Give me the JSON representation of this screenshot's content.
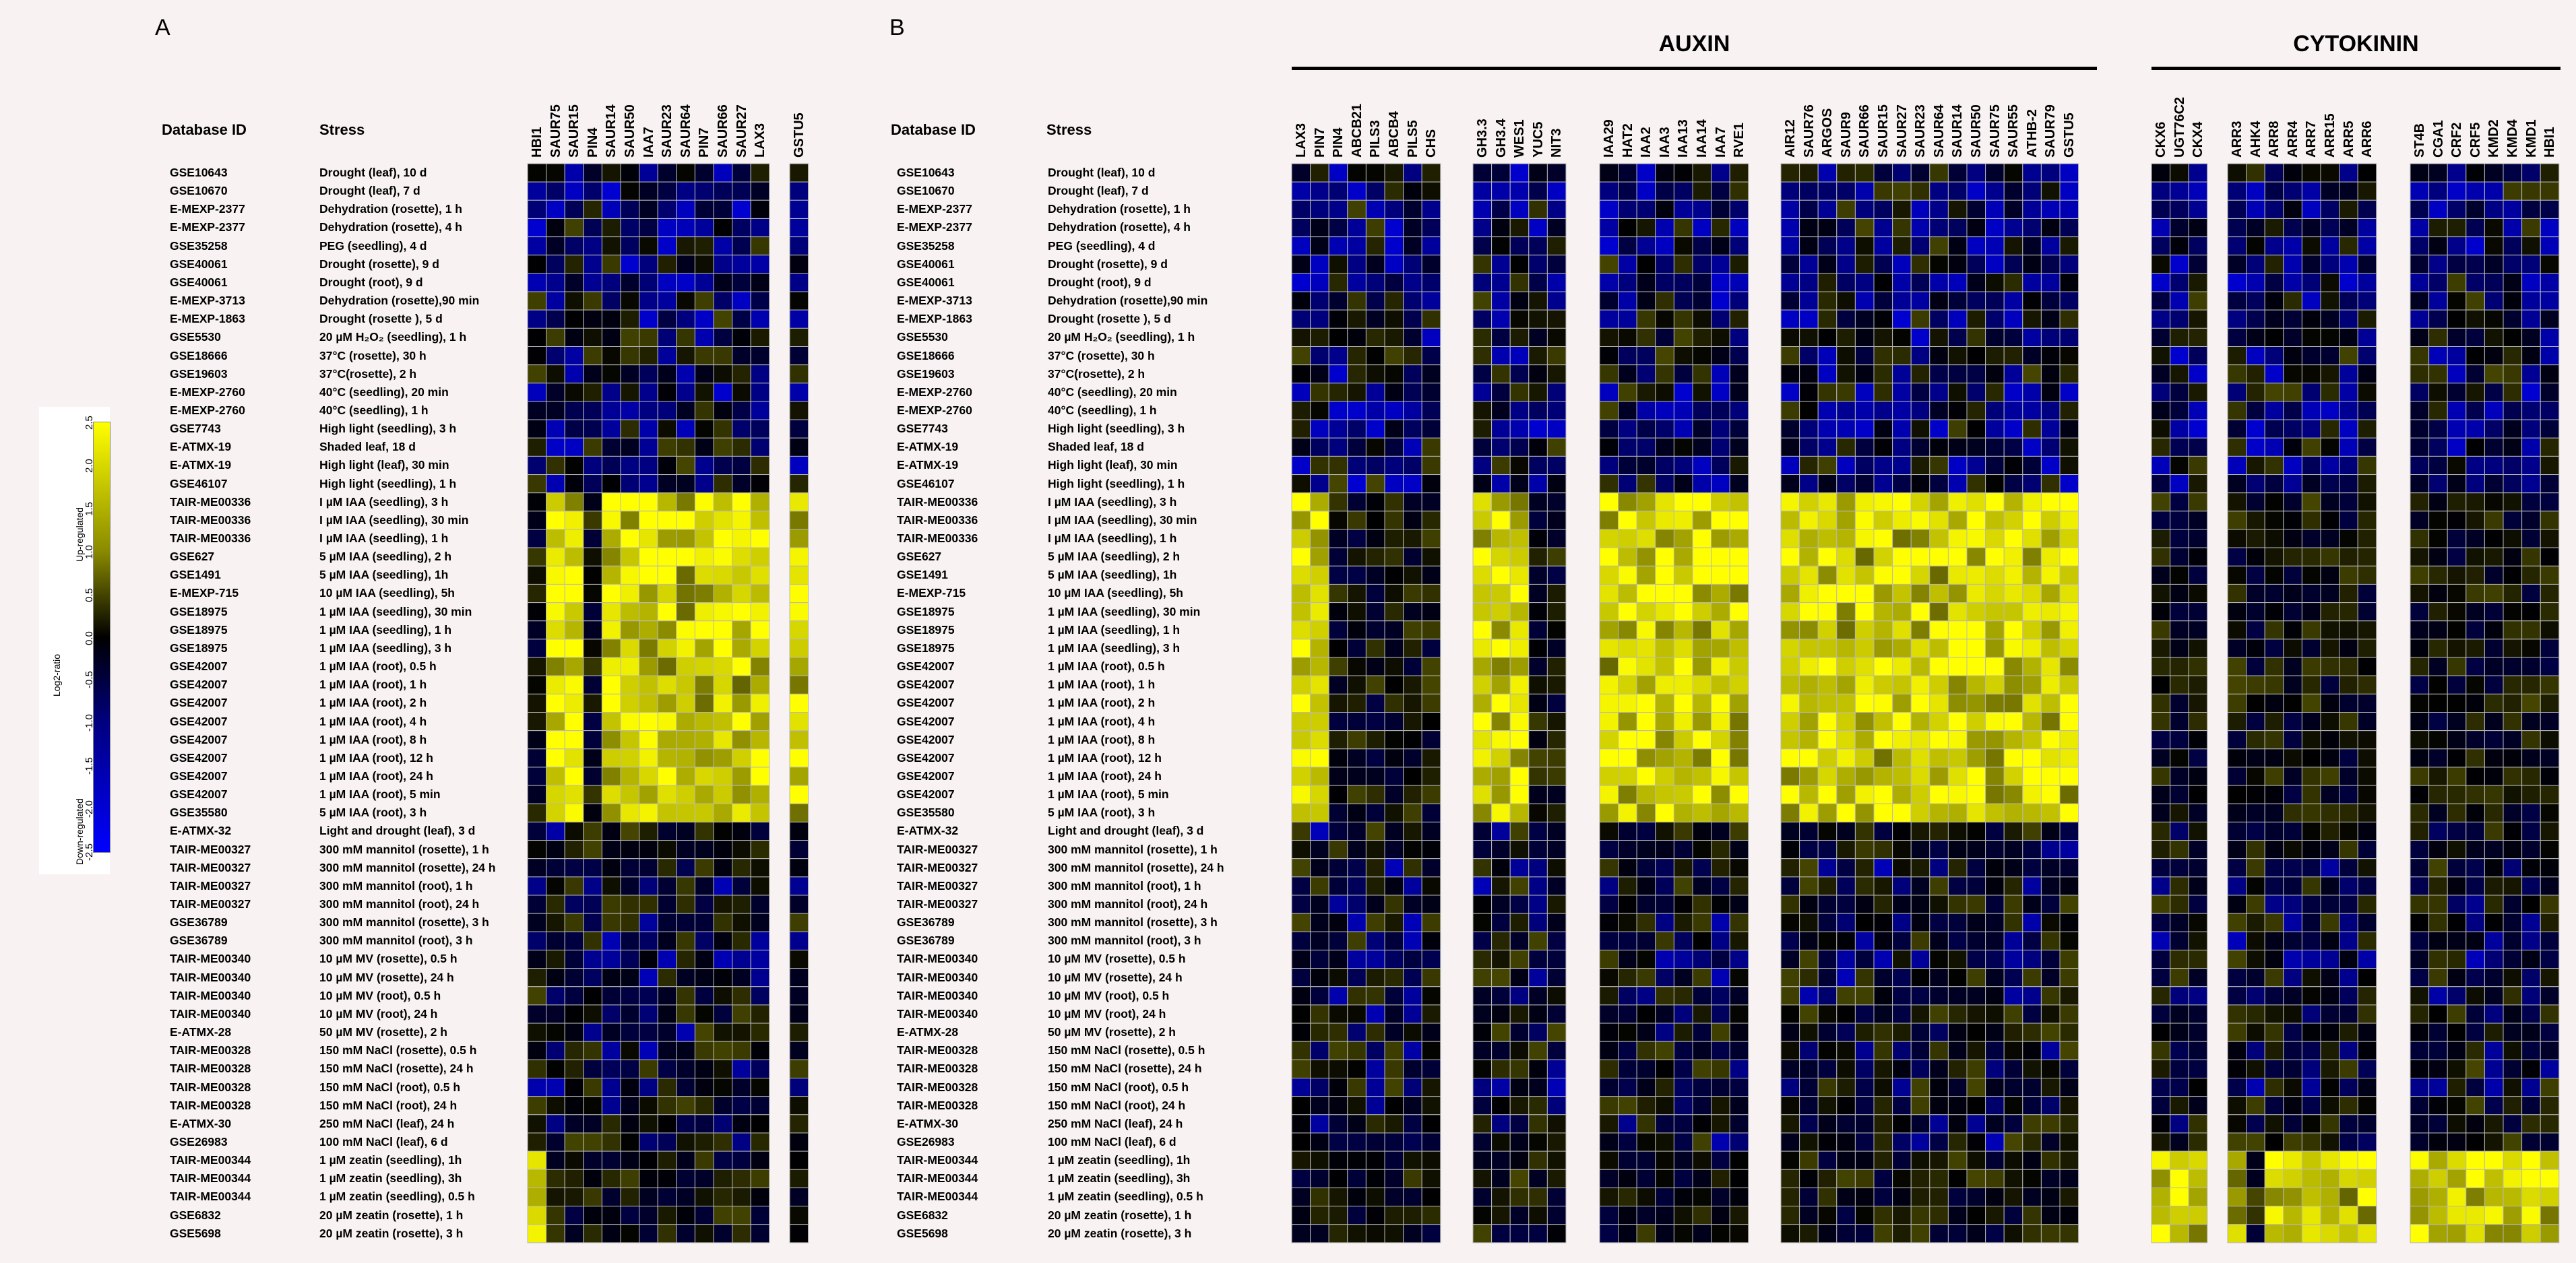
{
  "panels": {
    "a": "A",
    "b": "B"
  },
  "headers": {
    "database_id": "Database ID",
    "stress": "Stress"
  },
  "groups": {
    "auxin": "AUXIN",
    "cytokinin": "CYTOKININ"
  },
  "legend": {
    "up": "Up-regulated",
    "down": "Down-regulated",
    "axis": "Log2-ratio",
    "ticks": [
      "2.5",
      "2.0",
      "1.5",
      "1.0",
      "0.5",
      "0.0",
      "-0.5",
      "-1.0",
      "-1.5",
      "-2.0",
      "-2.5"
    ],
    "colors": {
      "high": "#ffff00",
      "mid": "#000000",
      "low": "#0000ff"
    }
  },
  "rows": [
    {
      "id": "GSE10643",
      "stress": "Drought (leaf), 10 d"
    },
    {
      "id": "GSE10670",
      "stress": "Drought (leaf), 7 d"
    },
    {
      "id": "E-MEXP-2377",
      "stress": "Dehydration (rosette), 1 h"
    },
    {
      "id": "E-MEXP-2377",
      "stress": "Dehydration (rosette), 4 h"
    },
    {
      "id": "GSE35258",
      "stress": "PEG (seedling), 4 d"
    },
    {
      "id": "GSE40061",
      "stress": "Drought (rosette), 9 d"
    },
    {
      "id": "GSE40061",
      "stress": "Drought (root), 9 d"
    },
    {
      "id": "E-MEXP-3713",
      "stress": "Dehydration (rosette),90 min"
    },
    {
      "id": "E-MEXP-1863",
      "stress": "Drought (rosette ), 5 d"
    },
    {
      "id": "GSE5530",
      "stress": "20 µM H₂O₂ (seedling), 1 h"
    },
    {
      "id": "GSE18666",
      "stress": "37°C (rosette), 30 h"
    },
    {
      "id": "GSE19603",
      "stress": "37°C(rosette), 2 h"
    },
    {
      "id": "E-MEXP-2760",
      "stress": "40°C (seedling),  20 min"
    },
    {
      "id": "E-MEXP-2760",
      "stress": "40°C (seedling), 1 h"
    },
    {
      "id": "GSE7743",
      "stress": "High light (seedling), 3 h"
    },
    {
      "id": "E-ATMX-19",
      "stress": "Shaded leaf, 18 d"
    },
    {
      "id": "E-ATMX-19",
      "stress": "High light (leaf), 30 min"
    },
    {
      "id": "GSE46107",
      "stress": "High light (seedling), 1 h"
    },
    {
      "id": "TAIR-ME00336",
      "stress": "I µM IAA (seedling), 3 h"
    },
    {
      "id": "TAIR-ME00336",
      "stress": "I µM IAA (seedling), 30 min"
    },
    {
      "id": "TAIR-ME00336",
      "stress": "I µM IAA (seedling), 1 h"
    },
    {
      "id": "GSE627",
      "stress": "5 µM IAA (seedling), 2 h"
    },
    {
      "id": "GSE1491",
      "stress": "5 µM IAA (seedling), 1h"
    },
    {
      "id": "E-MEXP-715",
      "stress": "10 µM IAA (seedling), 5h"
    },
    {
      "id": "GSE18975",
      "stress": "1 µM IAA (seedling), 30 min"
    },
    {
      "id": "GSE18975",
      "stress": "1 µM IAA (seedling), 1 h"
    },
    {
      "id": "GSE18975",
      "stress": "1 µM IAA (seedling), 3 h"
    },
    {
      "id": "GSE42007",
      "stress": "1 µM IAA (root), 0.5 h"
    },
    {
      "id": "GSE42007",
      "stress": "1 µM IAA (root), 1 h"
    },
    {
      "id": "GSE42007",
      "stress": "1 µM IAA (root), 2 h"
    },
    {
      "id": "GSE42007",
      "stress": "1 µM IAA (root), 4 h"
    },
    {
      "id": "GSE42007",
      "stress": "1 µM IAA (root), 8 h"
    },
    {
      "id": "GSE42007",
      "stress": "1 µM IAA (root), 12 h"
    },
    {
      "id": "GSE42007",
      "stress": "1 µM IAA (root), 24 h"
    },
    {
      "id": "GSE42007",
      "stress": "1 µM IAA (root), 5 min"
    },
    {
      "id": "GSE35580",
      "stress": "5 µM IAA (root), 3 h"
    },
    {
      "id": "E-ATMX-32",
      "stress": "Light and drought (leaf), 3 d"
    },
    {
      "id": "TAIR-ME00327",
      "stress": "300 mM mannitol (rosette), 1 h"
    },
    {
      "id": "TAIR-ME00327",
      "stress": "300 mM mannitol (rosette), 24 h"
    },
    {
      "id": "TAIR-ME00327",
      "stress": "300 mM mannitol (root), 1 h"
    },
    {
      "id": "TAIR-ME00327",
      "stress": "300 mM mannitol (root), 24 h"
    },
    {
      "id": "GSE36789",
      "stress": "300 mM mannitol (rosette), 3 h"
    },
    {
      "id": "GSE36789",
      "stress": "300 mM mannitol (root), 3 h"
    },
    {
      "id": "TAIR-ME00340",
      "stress": "10 µM MV (rosette), 0.5 h"
    },
    {
      "id": "TAIR-ME00340",
      "stress": "10 µM MV (rosette), 24 h"
    },
    {
      "id": "TAIR-ME00340",
      "stress": "10 µM MV (root), 0.5 h"
    },
    {
      "id": "TAIR-ME00340",
      "stress": "10 µM MV (root), 24 h"
    },
    {
      "id": "E-ATMX-28",
      "stress": "50 µM MV (rosette), 2 h"
    },
    {
      "id": "TAIR-ME00328",
      "stress": "150 mM NaCl (rosette), 0.5 h"
    },
    {
      "id": "TAIR-ME00328",
      "stress": "150 mM NaCl (rosette), 24 h"
    },
    {
      "id": "TAIR-ME00328",
      "stress": "150 mM NaCl (root), 0.5 h"
    },
    {
      "id": "TAIR-ME00328",
      "stress": "150 mM NaCl (root), 24 h"
    },
    {
      "id": "E-ATMX-30",
      "stress": "250 mM NaCl (leaf), 24 h"
    },
    {
      "id": "GSE26983",
      "stress": "100 mM NaCl (leaf), 6 d"
    },
    {
      "id": "TAIR-ME00344",
      "stress": "1 µM zeatin (seedling), 1h"
    },
    {
      "id": "TAIR-ME00344",
      "stress": "1 µM zeatin (seedling), 3h"
    },
    {
      "id": "TAIR-ME00344",
      "stress": "1 µM zeatin (seedling), 0.5 h"
    },
    {
      "id": "GSE6832",
      "stress": "20 µM zeatin (rosette), 1 h"
    },
    {
      "id": "GSE5698",
      "stress": "20 µM zeatin (rosette), 3 h"
    }
  ],
  "chart_data": {
    "type": "heatmap",
    "value_range": [
      -2.5,
      2.5
    ],
    "color_scale": [
      "#0000ff",
      "#000000",
      "#ffff00"
    ],
    "panels": [
      {
        "panel": "A",
        "blocks": [
          {
            "genes": [
              "HBI1",
              "SAUR75",
              "SAUR15",
              "PIN4",
              "SAUR14",
              "SAUR50",
              "IAA7",
              "SAUR23",
              "SAUR64",
              "PIN7",
              "SAUR66",
              "SAUR27",
              "LAX3"
            ]
          },
          {
            "genes": [
              "GSTU5"
            ]
          }
        ]
      },
      {
        "panel": "B",
        "blocks": [
          {
            "group": "AUXIN",
            "genes": [
              "LAX3",
              "PIN7",
              "PIN4",
              "ABCB21",
              "PILS3",
              "ABCB4",
              "PILS5",
              "CHS"
            ]
          },
          {
            "group": "AUXIN",
            "genes": [
              "GH3.3",
              "GH3.4",
              "WES1",
              "YUC5",
              "NIT3"
            ]
          },
          {
            "group": "AUXIN",
            "genes": [
              "IAA29",
              "HAT2",
              "IAA2",
              "IAA3",
              "IAA13",
              "IAA14",
              "IAA7",
              "RVE1"
            ]
          },
          {
            "group": "AUXIN",
            "genes": [
              "AIR12",
              "SAUR76",
              "ARGOS",
              "SAUR9",
              "SAUR66",
              "SAUR15",
              "SAUR27",
              "SAUR23",
              "SAUR64",
              "SAUR14",
              "SAUR50",
              "SAUR75",
              "SAUR55",
              "ATHB-2",
              "SAUR79",
              "GSTU5"
            ]
          },
          {
            "group": "CYTOKININ",
            "genes": [
              "CKX6",
              "UGT76C2",
              "CKX4"
            ]
          },
          {
            "group": "CYTOKININ",
            "genes": [
              "ARR3",
              "AHK4",
              "ARR8",
              "ARR4",
              "ARR7",
              "ARR15",
              "ARR5",
              "ARR6"
            ]
          },
          {
            "group": "CYTOKININ",
            "genes": [
              "ST4B",
              "CGA1",
              "CRF2",
              "CRF5",
              "KMD2",
              "KMD4",
              "KMD1",
              "HBI1"
            ]
          }
        ]
      }
    ]
  }
}
